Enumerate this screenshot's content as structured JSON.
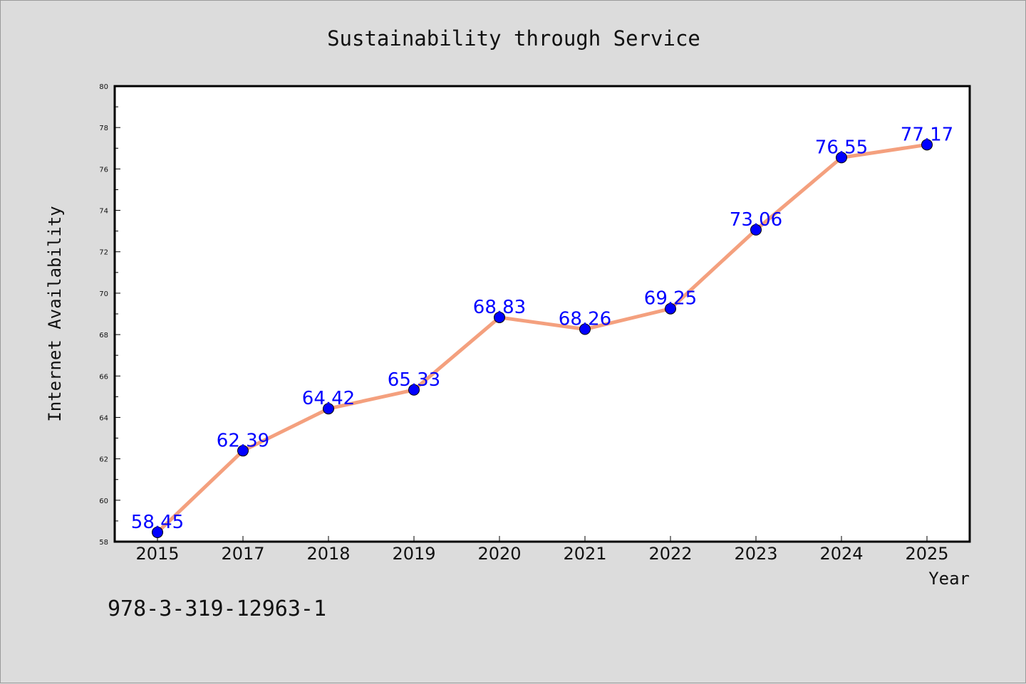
{
  "chart_data": {
    "type": "line",
    "title": "Sustainability through Service",
    "xlabel": "Year",
    "ylabel": "Internet Availability",
    "categories": [
      "2015",
      "2017",
      "2018",
      "2019",
      "2020",
      "2021",
      "2022",
      "2023",
      "2024",
      "2025"
    ],
    "series": [
      {
        "values": [
          58.45,
          62.39,
          64.42,
          65.33,
          68.83,
          68.26,
          69.25,
          73.06,
          76.55,
          77.17
        ]
      }
    ],
    "data_labels": [
      "58.45",
      "62.39",
      "64.42",
      "65.33",
      "68.83",
      "68.26",
      "69.25",
      "73.06",
      "76.55",
      "77.17"
    ],
    "ylim": [
      58,
      80
    ],
    "yticks": [
      58,
      60,
      62,
      64,
      66,
      68,
      70,
      72,
      74,
      76,
      78,
      80
    ],
    "grid": false,
    "legend": "none",
    "line_color": "#f4a07e",
    "marker_color": "#0000ff",
    "label_color": "#0000ff"
  },
  "footer": {
    "isbn": "978-3-319-12963-1"
  }
}
